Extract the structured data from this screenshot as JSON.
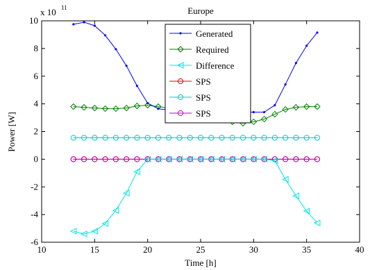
{
  "chart_data": {
    "type": "line",
    "title": "Europe",
    "xlabel": "Time [h]",
    "ylabel": "Power [W]",
    "y_exponent_label": "x 10",
    "y_exponent_power": "11",
    "xlim": [
      10,
      40
    ],
    "ylim": [
      -6,
      10
    ],
    "xticks": [
      10,
      15,
      20,
      25,
      30,
      35,
      40
    ],
    "yticks": [
      -6,
      -4,
      -2,
      0,
      2,
      4,
      6,
      8,
      10
    ],
    "grid": false,
    "legend_position": "top-center",
    "x": [
      13,
      14,
      15,
      16,
      17,
      18,
      19,
      20,
      21,
      22,
      23,
      24,
      25,
      26,
      27,
      28,
      29,
      30,
      31,
      32,
      33,
      34,
      35,
      36
    ],
    "series": [
      {
        "name": "Generated",
        "color": "#0000ff",
        "marker": "point",
        "values": [
          9.75,
          9.9,
          9.65,
          8.95,
          7.95,
          6.75,
          5.3,
          4.05,
          3.65,
          3.55,
          3.5,
          3.45,
          3.4,
          3.4,
          3.4,
          3.4,
          3.4,
          3.4,
          3.4,
          3.9,
          5.4,
          6.95,
          8.2,
          9.15
        ]
      },
      {
        "name": "Required",
        "color": "#008000",
        "marker": "diamond",
        "values": [
          3.8,
          3.75,
          3.7,
          3.65,
          3.65,
          3.7,
          3.85,
          3.9,
          3.8,
          3.7,
          3.6,
          3.5,
          3.4,
          3.2,
          3.0,
          2.7,
          2.6,
          2.7,
          2.9,
          3.25,
          3.6,
          3.75,
          3.8,
          3.8
        ]
      },
      {
        "name": "Difference",
        "color": "#00e5e5",
        "marker": "triangle-left",
        "values": [
          -5.2,
          -5.4,
          -5.2,
          -4.65,
          -3.7,
          -2.45,
          -0.9,
          0,
          0,
          0,
          0,
          0,
          0,
          0,
          0,
          0,
          0,
          0,
          0,
          -0.1,
          -1.45,
          -2.65,
          -3.75,
          -4.6
        ]
      },
      {
        "name": "SPS",
        "color": "#e00000",
        "marker": "circle",
        "values": [
          0,
          0,
          0,
          0,
          0,
          0,
          0,
          0,
          0,
          0,
          0,
          0,
          0,
          0,
          0,
          0,
          0,
          0,
          0,
          0,
          0,
          0,
          0,
          0
        ]
      },
      {
        "name": "SPS",
        "color": "#00c8c8",
        "marker": "circle",
        "values": [
          1.55,
          1.55,
          1.55,
          1.55,
          1.55,
          1.55,
          1.55,
          1.55,
          1.55,
          1.55,
          1.55,
          1.55,
          1.55,
          1.55,
          1.55,
          1.55,
          1.55,
          1.55,
          1.55,
          1.55,
          1.55,
          1.55,
          1.55,
          1.55
        ]
      },
      {
        "name": "SPS",
        "color": "#c000c0",
        "marker": "circle",
        "values": [
          0,
          0,
          0,
          0,
          0,
          0,
          0,
          0,
          0,
          0,
          0,
          0,
          0,
          0,
          0,
          0,
          0,
          0,
          0,
          0,
          0,
          0,
          0,
          0
        ]
      }
    ]
  }
}
